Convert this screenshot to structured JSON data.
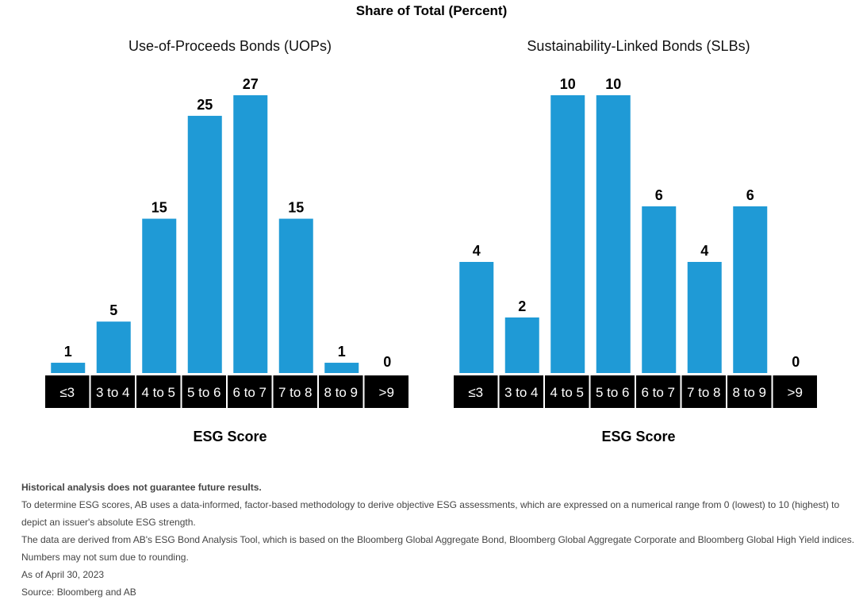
{
  "title": "Share of Total (Percent)",
  "chart_data": [
    {
      "type": "bar",
      "title": "Use-of-Proceeds Bonds (UOPs)",
      "categories": [
        "≤3",
        "3 to 4",
        "4 to 5",
        "5 to 6",
        "6 to 7",
        "7 to 8",
        "8 to 9",
        ">9"
      ],
      "values": [
        1,
        5,
        15,
        25,
        27,
        15,
        1,
        0
      ],
      "xlabel": "ESG Score",
      "ylabel": "",
      "ylim": [
        0,
        27
      ],
      "color": "#1f9ad6",
      "grid": false
    },
    {
      "type": "bar",
      "title": "Sustainability-Linked Bonds (SLBs)",
      "categories": [
        "≤3",
        "3 to 4",
        "4 to 5",
        "5 to 6",
        "6 to 7",
        "7 to 8",
        "8 to 9",
        ">9"
      ],
      "values": [
        4,
        2,
        10,
        10,
        6,
        4,
        6,
        0
      ],
      "xlabel": "ESG Score",
      "ylabel": "",
      "ylim": [
        0,
        10
      ],
      "color": "#1f9ad6",
      "grid": false
    }
  ],
  "notes": [
    "Historical analysis does not guarantee future results.",
    "To determine ESG scores, AB uses a data-informed, factor-based methodology to derive objective ESG assessments, which are expressed on a numerical range from 0 (lowest) to 10 (highest) to",
    "depict an issuer's absolute ESG strength.",
    "The data are derived from AB's ESG Bond Analysis Tool, which is based on the Bloomberg Global Aggregate Bond, Bloomberg Global Aggregate Corporate and Bloomberg Global High Yield indices.",
    "Numbers may not sum due to rounding.",
    "As of April 30, 2023",
    "Source: Bloomberg and AB"
  ],
  "colors": {
    "bar": "#1f9ad6",
    "category_band": "#000000",
    "category_text": "#ffffff"
  }
}
